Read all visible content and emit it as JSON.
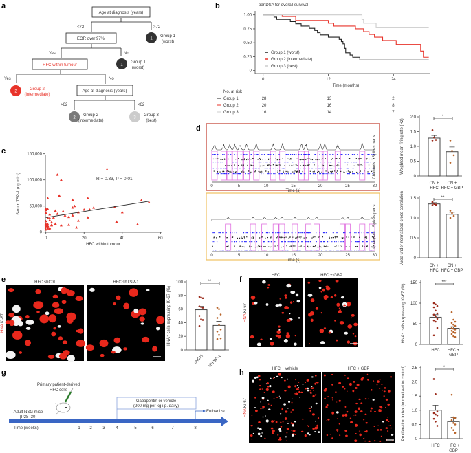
{
  "panel_labels": [
    "a",
    "b",
    "c",
    "d",
    "e",
    "f",
    "g",
    "h"
  ],
  "colors": {
    "red": "#e8332a",
    "dark": "#333333",
    "mid": "#7a7a7a",
    "light": "#cccccc",
    "dot": "#a0522d",
    "blue": "#2b2bff",
    "magenta": "#e070e0",
    "timeline": "#3a66c4",
    "d_box_top": "#c0392b",
    "d_box_bottom": "#f0c060"
  },
  "panel_a": {
    "root": "Age at diagnosis (years)",
    "lt72": "<72",
    "gt72": ">72",
    "eor": "EOR over 97%",
    "yes1": "Yes",
    "no1": "No",
    "hfc": "HFC within tumour",
    "yes2": "Yes",
    "no2": "No",
    "age2": "Age at diagnosis (years)",
    "gt62": ">62",
    "lt62": "<62",
    "nodes": [
      {
        "num": "1",
        "line1": "Group 1",
        "line2": "(worst)"
      },
      {
        "num": "1",
        "line1": "Group 1",
        "line2": "(worst)"
      },
      {
        "num": "2",
        "line1": "Group 2",
        "line2": "(intermediate)"
      },
      {
        "num": "2",
        "line1": "Group 2",
        "line2": "(intermediate)"
      },
      {
        "num": "3",
        "line1": "Group 3",
        "line2": "(best)"
      }
    ]
  },
  "chart_data": [
    {
      "panel": "b",
      "type": "line",
      "title": "partDSA for overall survival",
      "xlabel": "Time (months)",
      "ylabel": "",
      "xlim": [
        0,
        30.5
      ],
      "ylim": [
        0,
        1.05
      ],
      "xticks": [
        "0",
        "12",
        "24"
      ],
      "yticks": [
        "0",
        "0.25",
        "0.50",
        "0.75",
        "1.00"
      ],
      "legend_position": "bottom-left",
      "series": [
        {
          "name": "Group 1 (worst)",
          "color": "#222222",
          "steps": [
            [
              0,
              1
            ],
            [
              2,
              0.96
            ],
            [
              2.5,
              0.92
            ],
            [
              5,
              0.88
            ],
            [
              6,
              0.84
            ],
            [
              7,
              0.8
            ],
            [
              8.5,
              0.76
            ],
            [
              9.5,
              0.72
            ],
            [
              10,
              0.68
            ],
            [
              10.5,
              0.64
            ],
            [
              12,
              0.6
            ],
            [
              14,
              0.56
            ],
            [
              14.4,
              0.52
            ],
            [
              14.7,
              0.48
            ],
            [
              15,
              0.4
            ],
            [
              15.2,
              0.32
            ],
            [
              16,
              0.28
            ],
            [
              16.5,
              0.24
            ],
            [
              17.8,
              0.19
            ],
            [
              30.5,
              0.19
            ]
          ]
        },
        {
          "name": "Group 2 (intermediate)",
          "color": "#e8332a",
          "steps": [
            [
              3.5,
              1
            ],
            [
              3.5,
              0.97
            ],
            [
              6,
              0.9
            ],
            [
              12,
              0.85
            ],
            [
              13,
              0.8
            ],
            [
              17,
              0.75
            ],
            [
              18.5,
              0.7
            ],
            [
              19.5,
              0.65
            ],
            [
              20.5,
              0.6
            ],
            [
              22,
              0.54
            ],
            [
              24.5,
              0.47
            ],
            [
              29,
              0.35
            ],
            [
              29.5,
              0.24
            ],
            [
              30.5,
              0.24
            ]
          ]
        },
        {
          "name": "Group 3 (best)",
          "color": "#cccccc",
          "steps": [
            [
              0,
              1
            ],
            [
              18.2,
              1
            ],
            [
              18.2,
              0.92
            ],
            [
              18.5,
              0.85
            ],
            [
              20.8,
              0.77
            ],
            [
              30.5,
              0.77
            ]
          ]
        }
      ],
      "at_risk": {
        "label": "No. at risk",
        "rows": [
          {
            "group": "Group 1",
            "color": "#222222",
            "values": [
              "28",
              "13",
              "2"
            ]
          },
          {
            "group": "Group 2",
            "color": "#e8332a",
            "values": [
              "20",
              "16",
              "8"
            ]
          },
          {
            "group": "Group 3",
            "color": "#cccccc",
            "values": [
              "16",
              "14",
              "7"
            ]
          }
        ]
      }
    },
    {
      "panel": "c",
      "type": "scatter",
      "annotation": "R = 0.33, P = 0.01",
      "xlabel": "HFC within tumour",
      "ylabel": "Serum TSP-1 (ng ml⁻¹)",
      "xlim": [
        0,
        60
      ],
      "ylim": [
        0,
        150000
      ],
      "xticks": [
        "0",
        "20",
        "40",
        "60"
      ],
      "yticks": [
        "0",
        "50,000",
        "100,000",
        "150,000"
      ],
      "regression": [
        [
          0,
          28000
        ],
        [
          54,
          59000
        ]
      ],
      "points": [
        [
          32,
          120000
        ],
        [
          6,
          110000
        ],
        [
          8,
          100000
        ],
        [
          7,
          70000
        ],
        [
          1,
          65000
        ],
        [
          14,
          62000
        ],
        [
          22,
          65000
        ],
        [
          15,
          50000
        ],
        [
          14,
          47000
        ],
        [
          25,
          47000
        ],
        [
          36,
          48000
        ],
        [
          50,
          61000
        ],
        [
          54,
          57000
        ],
        [
          20,
          43000
        ],
        [
          23,
          43000
        ],
        [
          5,
          41000
        ],
        [
          9,
          40000
        ],
        [
          17,
          38000
        ],
        [
          40,
          38000
        ],
        [
          0,
          45000
        ],
        [
          1,
          44000
        ],
        [
          0,
          42000
        ],
        [
          0,
          37000
        ],
        [
          6,
          35000
        ],
        [
          2,
          34000
        ],
        [
          10,
          32000
        ],
        [
          14,
          32000
        ],
        [
          12,
          29000
        ],
        [
          22,
          28000
        ],
        [
          4,
          28000
        ],
        [
          1,
          27000
        ],
        [
          2,
          27000
        ],
        [
          2,
          23000
        ],
        [
          17,
          22000
        ],
        [
          0,
          21000
        ],
        [
          37,
          20000
        ],
        [
          3,
          19000
        ],
        [
          5,
          16000
        ],
        [
          48,
          15000
        ],
        [
          12,
          14000
        ],
        [
          3,
          14000
        ],
        [
          8,
          13000
        ],
        [
          0,
          16000
        ],
        [
          1,
          15000
        ],
        [
          0,
          12000
        ],
        [
          1,
          10000
        ],
        [
          0,
          9000
        ],
        [
          2,
          8000
        ],
        [
          16,
          9000
        ],
        [
          1,
          7000
        ],
        [
          2,
          6000
        ],
        [
          0,
          5000
        ],
        [
          0,
          14000
        ],
        [
          1,
          12000
        ],
        [
          3,
          13000
        ]
      ]
    },
    {
      "panel": "d-top",
      "type": "bar",
      "ylabel": "Weighted mean firing rate (Hz)",
      "ylim": [
        0,
        2.0
      ],
      "yticks": [
        "0",
        "0.5",
        "1.0",
        "1.5",
        "2.0"
      ],
      "categories": [
        "CN + HFC",
        "CN + HFC + GBP"
      ],
      "values": [
        1.28,
        0.82
      ],
      "sem": [
        0.09,
        0.16
      ],
      "points": [
        [
          1.55,
          1.3,
          1.22,
          1.2
        ],
        [
          1.2,
          0.85,
          0.7,
          0.45
        ]
      ],
      "significance": "*"
    },
    {
      "panel": "d-bottom",
      "type": "bar",
      "ylabel": "Area under normalized cross-correlation",
      "ylim": [
        0,
        1.5
      ],
      "yticks": [
        "0",
        "0.5",
        "1.0",
        "1.5"
      ],
      "categories": [
        "CN + HFC",
        "CN + HFC + GBP"
      ],
      "values": [
        1.35,
        1.09
      ],
      "sem": [
        0.03,
        0.05
      ],
      "points": [
        [
          1.4,
          1.35,
          1.33,
          1.32
        ],
        [
          1.18,
          1.12,
          1.05,
          1.0
        ]
      ],
      "significance": "**"
    },
    {
      "panel": "e",
      "type": "bar",
      "ylabel": "HNA⁺ cells expressing Ki-67 (%)",
      "ylim": [
        0,
        100
      ],
      "yticks": [
        "0",
        "20",
        "40",
        "60",
        "80",
        "100"
      ],
      "categories": [
        "shCtrl",
        "shTSP-1"
      ],
      "values": [
        59,
        36
      ],
      "sem": [
        5,
        6
      ],
      "points": [
        [
          78,
          77,
          76,
          64,
          63,
          62,
          50,
          45,
          44,
          35
        ],
        [
          62,
          60,
          52,
          47,
          37,
          30,
          27,
          22,
          17,
          16
        ]
      ],
      "significance": "**"
    },
    {
      "panel": "f",
      "type": "bar",
      "ylabel": "HNA⁺ cells expressing Ki-67 (%)",
      "ylim": [
        0,
        150
      ],
      "yticks": [
        "0",
        "50",
        "100",
        "150"
      ],
      "categories": [
        "HFC",
        "HFC + GBP"
      ],
      "values": [
        66,
        39
      ],
      "sem": [
        6,
        4
      ],
      "points": [
        [
          100,
          97,
          93,
          90,
          82,
          75,
          72,
          68,
          62,
          58,
          55,
          40,
          22
        ],
        [
          78,
          60,
          55,
          52,
          48,
          45,
          40,
          38,
          36,
          33,
          30,
          28,
          25,
          20,
          18
        ]
      ],
      "significance": "***"
    },
    {
      "panel": "h",
      "type": "bar",
      "ylabel": "Proliferation index (normalized to control)",
      "ylim": [
        0,
        2.5
      ],
      "yticks": [
        "0",
        "0.5",
        "1.0",
        "1.5",
        "2.0",
        "2.5"
      ],
      "categories": [
        "HFC",
        "HFC + GBP"
      ],
      "values": [
        1.0,
        0.6
      ],
      "sem": [
        0.18,
        0.14
      ],
      "points": [
        [
          2.1,
          1.57,
          0.95,
          0.9,
          0.85,
          0.82,
          0.7,
          0.6,
          0.45
        ],
        [
          1.55,
          0.75,
          0.72,
          0.65,
          0.55,
          0.5,
          0.38,
          0.3,
          0.2
        ]
      ],
      "significance": "*"
    }
  ],
  "panel_d": {
    "xlabel": "Time (s)",
    "xticks": [
      "0",
      "5",
      "10",
      "15",
      "20",
      "25",
      "30"
    ],
    "right_label_top": "Spikes per s",
    "right_label_bottom": "Channels",
    "top_bursts": [
      0.5,
      2.2,
      3.3,
      4.2,
      5.2,
      6.4,
      8.2,
      11.3,
      13.0,
      16.5,
      17.3,
      20.0,
      20.8,
      23.2,
      27.7
    ],
    "bottom_bursts": [
      3.0,
      7.6,
      9.7,
      11.8,
      12.9,
      15.3,
      17.8,
      19.3,
      24.1,
      25.0,
      27.7,
      29.5
    ]
  },
  "panel_e": {
    "titles": [
      "HFC shCtrl",
      "HFC shTSP-1"
    ],
    "stain_hna": "HNA",
    "stain_ki67": "Ki-67"
  },
  "panel_f": {
    "titles": [
      "HFC",
      "HFC + GBP"
    ],
    "stain_hna": "HNA",
    "stain_ki67": "Ki-67"
  },
  "panel_h": {
    "titles": [
      "HFC + vehicle",
      "HFC + GBP"
    ],
    "stain_hna": "HNA",
    "stain_ki67": "Ki-67"
  },
  "panel_g": {
    "cells_line1": "Primary patient-derived",
    "cells_line2": "HFC cells",
    "mice_line1": "Adult NSG mice",
    "mice_line2": "(P28–30)",
    "treatment_line1": "Gabapentin or vehicle",
    "treatment_line2": "(200 mg per kg i.p. daily)",
    "end": "Euthanize",
    "time_label": "Time (weeks)",
    "weeks": [
      "1",
      "2",
      "3",
      "4",
      "5",
      "6",
      "7",
      "8"
    ]
  }
}
